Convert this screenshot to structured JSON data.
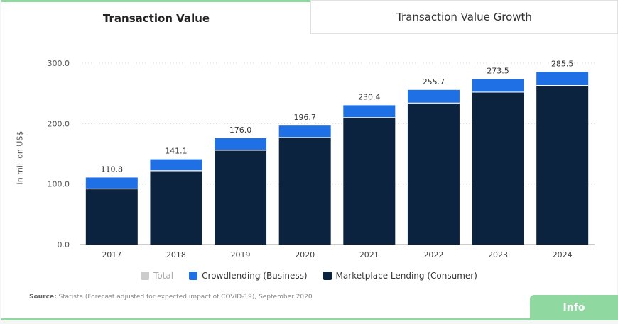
{
  "tabs": {
    "active_label": "Transaction Value",
    "inactive_label": "Transaction Value Growth"
  },
  "chart_data": {
    "type": "bar",
    "stacked": true,
    "categories": [
      "2017",
      "2018",
      "2019",
      "2020",
      "2021",
      "2022",
      "2023",
      "2024"
    ],
    "series": [
      {
        "name": "Marketplace Lending (Consumer)",
        "color": "#0c2340",
        "values": [
          92,
          122,
          156,
          177,
          210,
          234,
          252,
          263
        ]
      },
      {
        "name": "Crowdlending (Business)",
        "color": "#1f6fe5",
        "values": [
          18.8,
          19.1,
          20.0,
          19.7,
          20.4,
          21.7,
          21.5,
          22.5
        ]
      }
    ],
    "totals": [
      "110.8",
      "141.1",
      "176.0",
      "196.7",
      "230.4",
      "255.7",
      "273.5",
      "285.5"
    ],
    "ylabel": "in million US$",
    "ylim": [
      0,
      300
    ],
    "yticks": [
      "0.0",
      "100.0",
      "200.0",
      "300.0"
    ],
    "grid": true
  },
  "legend": {
    "total_label": "Total",
    "total_color": "#cccccc",
    "crowd_label": "Crowdlending (Business)",
    "crowd_color": "#1f6fe5",
    "market_label": "Marketplace Lending (Consumer)",
    "market_color": "#0c2340"
  },
  "source": {
    "prefix": "Source:",
    "text": "Statista (Forecast adjusted for expected impact of COVID-19), September 2020"
  },
  "info_button": {
    "label": "Info"
  }
}
